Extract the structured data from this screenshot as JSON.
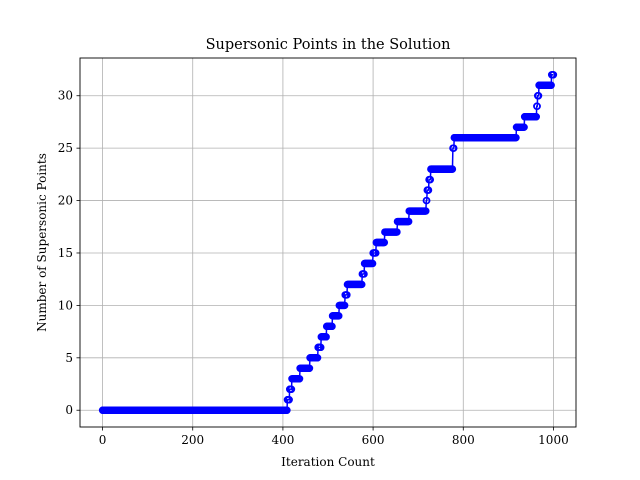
{
  "chart_data": {
    "type": "scatter",
    "title": "Supersonic Points in the Solution",
    "xlabel": "Iteration Count",
    "ylabel": "Number of Supersonic Points",
    "xlim": [
      -50,
      1050
    ],
    "ylim": [
      -1.6,
      33.6
    ],
    "xticks": [
      0,
      200,
      400,
      600,
      800,
      1000
    ],
    "yticks": [
      0,
      5,
      10,
      15,
      20,
      25,
      30
    ],
    "grid": true,
    "series_color": "#0000ff",
    "marker": "open-circle",
    "connected_line": true,
    "steps": [
      {
        "x_start": 0,
        "x_end": 409,
        "y": 0
      },
      {
        "x_start": 410,
        "x_end": 414,
        "y": 1
      },
      {
        "x_start": 415,
        "x_end": 419,
        "y": 2
      },
      {
        "x_start": 420,
        "x_end": 437,
        "y": 3
      },
      {
        "x_start": 438,
        "x_end": 459,
        "y": 4
      },
      {
        "x_start": 460,
        "x_end": 477,
        "y": 5
      },
      {
        "x_start": 478,
        "x_end": 484,
        "y": 6
      },
      {
        "x_start": 485,
        "x_end": 496,
        "y": 7
      },
      {
        "x_start": 497,
        "x_end": 509,
        "y": 8
      },
      {
        "x_start": 510,
        "x_end": 524,
        "y": 9
      },
      {
        "x_start": 525,
        "x_end": 537,
        "y": 10
      },
      {
        "x_start": 538,
        "x_end": 542,
        "y": 11
      },
      {
        "x_start": 543,
        "x_end": 575,
        "y": 12
      },
      {
        "x_start": 576,
        "x_end": 580,
        "y": 13
      },
      {
        "x_start": 581,
        "x_end": 599,
        "y": 14
      },
      {
        "x_start": 600,
        "x_end": 606,
        "y": 15
      },
      {
        "x_start": 607,
        "x_end": 625,
        "y": 16
      },
      {
        "x_start": 626,
        "x_end": 653,
        "y": 17
      },
      {
        "x_start": 654,
        "x_end": 679,
        "y": 18
      },
      {
        "x_start": 680,
        "x_end": 717,
        "y": 19
      },
      {
        "x_start": 718,
        "x_end": 719,
        "y": 20
      },
      {
        "x_start": 720,
        "x_end": 723,
        "y": 21
      },
      {
        "x_start": 724,
        "x_end": 727,
        "y": 22
      },
      {
        "x_start": 728,
        "x_end": 776,
        "y": 23
      },
      {
        "x_start": 777,
        "x_end": 779,
        "y": 25
      },
      {
        "x_start": 780,
        "x_end": 917,
        "y": 26
      },
      {
        "x_start": 918,
        "x_end": 935,
        "y": 27
      },
      {
        "x_start": 936,
        "x_end": 962,
        "y": 28
      },
      {
        "x_start": 963,
        "x_end": 964,
        "y": 29
      },
      {
        "x_start": 965,
        "x_end": 967,
        "y": 30
      },
      {
        "x_start": 968,
        "x_end": 995,
        "y": 31
      },
      {
        "x_start": 996,
        "x_end": 1000,
        "y": 32
      }
    ]
  }
}
